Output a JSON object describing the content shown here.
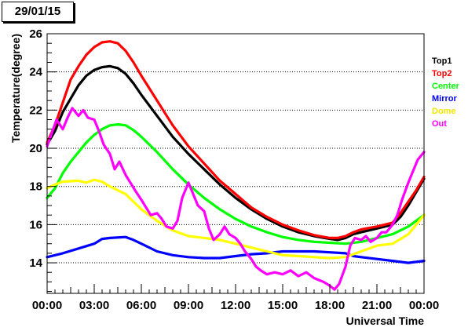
{
  "chart_data": {
    "type": "line",
    "title": "29/01/15",
    "xlabel": "Universal Time",
    "ylabel": "Temperature(degree)",
    "xlim": [
      0,
      24
    ],
    "ylim": [
      12.4,
      26
    ],
    "x_ticks": [
      {
        "value": 0,
        "label": "00:00"
      },
      {
        "value": 3,
        "label": "03:00"
      },
      {
        "value": 6,
        "label": "06:00"
      },
      {
        "value": 9,
        "label": "09:00"
      },
      {
        "value": 12,
        "label": "12:00"
      },
      {
        "value": 15,
        "label": "15:00"
      },
      {
        "value": 18,
        "label": "18:00"
      },
      {
        "value": 21,
        "label": "21:00"
      },
      {
        "value": 24,
        "label": "00:00"
      }
    ],
    "y_ticks": [
      {
        "value": 14,
        "label": "14"
      },
      {
        "value": 16,
        "label": "16"
      },
      {
        "value": 18,
        "label": "18"
      },
      {
        "value": 20,
        "label": "20"
      },
      {
        "value": 22,
        "label": "22"
      },
      {
        "value": 24,
        "label": "24"
      },
      {
        "value": 26,
        "label": "26"
      }
    ],
    "grid": "horizontal-dotted",
    "legend_position": "right",
    "series": [
      {
        "name": "Top1",
        "color": "#000000",
        "x": [
          0,
          0.5,
          1,
          1.5,
          2,
          2.5,
          3,
          3.5,
          4,
          4.5,
          5,
          5.5,
          6,
          7,
          8,
          9,
          10,
          11,
          12,
          13,
          14,
          15,
          16,
          17,
          18,
          18.5,
          19,
          19.5,
          20,
          21,
          22,
          22.5,
          23,
          23.5,
          24
        ],
        "y": [
          20.2,
          20.9,
          21.9,
          22.6,
          23.3,
          23.8,
          24.1,
          24.25,
          24.3,
          24.2,
          23.9,
          23.4,
          22.8,
          21.7,
          20.6,
          19.7,
          18.9,
          18.1,
          17.4,
          16.8,
          16.3,
          15.9,
          15.6,
          15.4,
          15.25,
          15.2,
          15.3,
          15.5,
          15.6,
          15.8,
          16.0,
          16.4,
          17.0,
          17.7,
          18.4
        ]
      },
      {
        "name": "Top2",
        "color": "#ff0000",
        "x": [
          0,
          0.5,
          1,
          1.5,
          2,
          2.5,
          3,
          3.5,
          4,
          4.5,
          5,
          5.5,
          6,
          7,
          8,
          9,
          10,
          11,
          12,
          13,
          14,
          15,
          16,
          17,
          18,
          18.5,
          19,
          19.5,
          20,
          21,
          22,
          22.5,
          23,
          23.5,
          24
        ],
        "y": [
          20.3,
          21.2,
          22.4,
          23.6,
          24.3,
          24.9,
          25.3,
          25.55,
          25.6,
          25.5,
          25.1,
          24.5,
          23.8,
          22.5,
          21.2,
          20.1,
          19.2,
          18.3,
          17.6,
          16.9,
          16.4,
          16.0,
          15.7,
          15.45,
          15.3,
          15.3,
          15.4,
          15.6,
          15.75,
          15.9,
          16.1,
          16.6,
          17.2,
          17.8,
          18.5
        ]
      },
      {
        "name": "Center",
        "color": "#00ff00",
        "x": [
          0,
          0.5,
          1,
          1.5,
          2,
          2.5,
          3,
          3.5,
          4,
          4.5,
          5,
          5.5,
          6,
          7,
          8,
          9,
          10,
          11,
          12,
          13,
          14,
          15,
          16,
          17,
          18,
          19,
          20,
          21,
          22,
          23,
          24
        ],
        "y": [
          17.4,
          17.9,
          18.7,
          19.3,
          19.8,
          20.3,
          20.7,
          21.0,
          21.2,
          21.25,
          21.2,
          20.95,
          20.6,
          19.8,
          18.9,
          18.1,
          17.4,
          16.8,
          16.3,
          15.9,
          15.6,
          15.35,
          15.2,
          15.1,
          15.05,
          15.0,
          15.1,
          15.3,
          15.5,
          15.9,
          16.5
        ]
      },
      {
        "name": "Mirror",
        "color": "#0000ff",
        "x": [
          0,
          1,
          2,
          3,
          3.5,
          4,
          5,
          5.5,
          6,
          7,
          8,
          9,
          10,
          11,
          12,
          13,
          14,
          15,
          16,
          17,
          18,
          19,
          19.5,
          20,
          21,
          22,
          23,
          24
        ],
        "y": [
          14.3,
          14.5,
          14.75,
          15.0,
          15.25,
          15.3,
          15.35,
          15.2,
          15.0,
          14.6,
          14.4,
          14.3,
          14.25,
          14.25,
          14.35,
          14.45,
          14.5,
          14.6,
          14.6,
          14.6,
          14.55,
          14.5,
          14.35,
          14.3,
          14.2,
          14.1,
          14.0,
          14.1
        ]
      },
      {
        "name": "Dome",
        "color": "#ffff00",
        "x": [
          0,
          0.5,
          1,
          2,
          2.5,
          3,
          3.5,
          4,
          5,
          6,
          7,
          8,
          9,
          10,
          11,
          12,
          13,
          14,
          15,
          16,
          17,
          18,
          19,
          20,
          21,
          22,
          23,
          24
        ],
        "y": [
          17.9,
          18.1,
          18.25,
          18.3,
          18.2,
          18.35,
          18.25,
          18.0,
          17.6,
          16.8,
          16.2,
          15.7,
          15.4,
          15.3,
          15.2,
          15.0,
          14.8,
          14.6,
          14.4,
          14.35,
          14.3,
          14.25,
          14.3,
          14.6,
          14.9,
          15.0,
          15.5,
          16.5
        ]
      },
      {
        "name": "Out",
        "color": "#ff00ff",
        "x": [
          0,
          0.3,
          0.6,
          1,
          1.3,
          1.6,
          2,
          2.3,
          2.6,
          3,
          3.3,
          3.6,
          4,
          4.3,
          4.6,
          5,
          5.3,
          5.6,
          6,
          6.3,
          6.6,
          7,
          7.3,
          7.6,
          8,
          8.3,
          8.6,
          9,
          9.3,
          9.6,
          10,
          10.3,
          10.6,
          11,
          11.3,
          11.6,
          12,
          12.3,
          12.6,
          13,
          13.3,
          13.6,
          14,
          14.5,
          15,
          15.5,
          16,
          16.5,
          17,
          17.3,
          17.6,
          18,
          18.3,
          18.6,
          19,
          19.3,
          19.6,
          20,
          20.3,
          20.6,
          21,
          21.3,
          21.6,
          22,
          22.3,
          22.6,
          23,
          23.3,
          23.6,
          24
        ],
        "y": [
          20.1,
          20.8,
          21.5,
          21.0,
          21.6,
          22.1,
          21.7,
          22.0,
          21.6,
          21.5,
          20.9,
          20.2,
          19.7,
          18.9,
          19.3,
          18.6,
          18.2,
          17.8,
          17.3,
          16.9,
          16.5,
          16.6,
          16.3,
          15.9,
          15.8,
          16.2,
          17.4,
          18.2,
          17.6,
          17.0,
          16.7,
          15.8,
          15.2,
          15.5,
          15.9,
          15.5,
          15.3,
          15.0,
          14.6,
          14.2,
          13.8,
          13.6,
          13.4,
          13.5,
          13.4,
          13.6,
          13.3,
          13.5,
          13.2,
          13.1,
          13.0,
          12.8,
          12.6,
          12.9,
          13.8,
          14.9,
          15.3,
          15.2,
          15.4,
          15.1,
          15.3,
          15.6,
          15.6,
          16.0,
          16.5,
          17.3,
          18.2,
          18.8,
          19.4,
          19.8
        ]
      }
    ]
  }
}
